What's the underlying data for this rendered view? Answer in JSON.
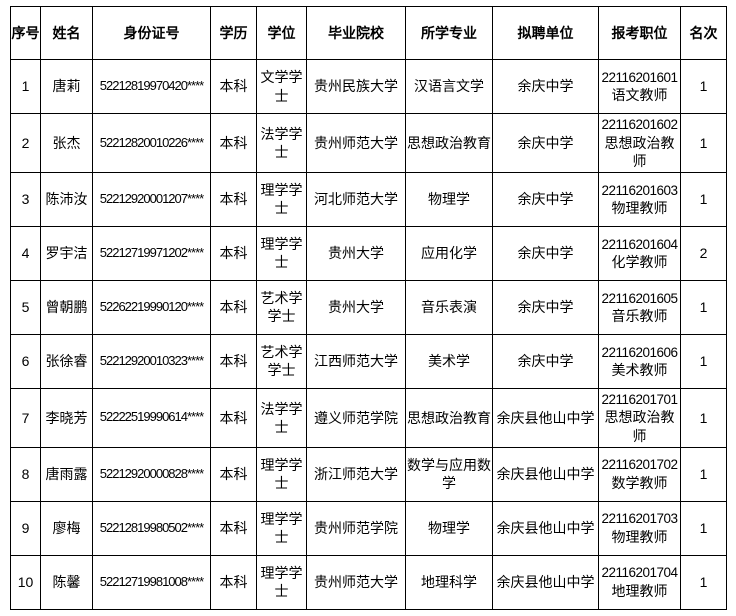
{
  "table": {
    "headers": [
      {
        "key": "index",
        "label": "序号"
      },
      {
        "key": "name",
        "label": "姓名"
      },
      {
        "key": "id_number",
        "label": "身份证号"
      },
      {
        "key": "education",
        "label": "学历"
      },
      {
        "key": "degree",
        "label": "学位"
      },
      {
        "key": "school",
        "label": "毕业院校"
      },
      {
        "key": "major",
        "label": "所学专业"
      },
      {
        "key": "employer",
        "label": "拟聘单位"
      },
      {
        "key": "position",
        "label": "报考职位"
      },
      {
        "key": "rank",
        "label": "名次"
      }
    ],
    "rows": [
      {
        "index": "1",
        "name": "唐莉",
        "id_number": "52212819970420****",
        "education": "本科",
        "degree": "文学学士",
        "school": "贵州民族大学",
        "major": "汉语言文学",
        "employer": "余庆中学",
        "position_code": "22116201601",
        "position_title": "语文教师",
        "rank": "1"
      },
      {
        "index": "2",
        "name": "张杰",
        "id_number": "52212820010226****",
        "education": "本科",
        "degree": "法学学士",
        "school": "贵州师范大学",
        "major": "思想政治教育",
        "employer": "余庆中学",
        "position_code": "22116201602",
        "position_title": "思想政治教师",
        "rank": "1"
      },
      {
        "index": "3",
        "name": "陈沛汝",
        "id_number": "52212920001207****",
        "education": "本科",
        "degree": "理学学士",
        "school": "河北师范大学",
        "major": "物理学",
        "employer": "余庆中学",
        "position_code": "22116201603",
        "position_title": "物理教师",
        "rank": "1"
      },
      {
        "index": "4",
        "name": "罗宇洁",
        "id_number": "52212719971202****",
        "education": "本科",
        "degree": "理学学士",
        "school": "贵州大学",
        "major": "应用化学",
        "employer": "余庆中学",
        "position_code": "22116201604",
        "position_title": "化学教师",
        "rank": "2"
      },
      {
        "index": "5",
        "name": "曾朝鹏",
        "id_number": "52262219990120****",
        "education": "本科",
        "degree": "艺术学学士",
        "school": "贵州大学",
        "major": "音乐表演",
        "employer": "余庆中学",
        "position_code": "22116201605",
        "position_title": "音乐教师",
        "rank": "1"
      },
      {
        "index": "6",
        "name": "张徐睿",
        "id_number": "52212920010323****",
        "education": "本科",
        "degree": "艺术学学士",
        "school": "江西师范大学",
        "major": "美术学",
        "employer": "余庆中学",
        "position_code": "22116201606",
        "position_title": "美术教师",
        "rank": "1"
      },
      {
        "index": "7",
        "name": "李晓芳",
        "id_number": "52222519990614****",
        "education": "本科",
        "degree": "法学学士",
        "school": "遵义师范学院",
        "major": "思想政治教育",
        "employer": "余庆县他山中学",
        "position_code": "22116201701",
        "position_title": "思想政治教师",
        "rank": "1"
      },
      {
        "index": "8",
        "name": "唐雨露",
        "id_number": "52212920000828****",
        "education": "本科",
        "degree": "理学学士",
        "school": "浙江师范大学",
        "major": "数学与应用数学",
        "employer": "余庆县他山中学",
        "position_code": "22116201702",
        "position_title": "数学教师",
        "rank": "1"
      },
      {
        "index": "9",
        "name": "廖梅",
        "id_number": "52212819980502****",
        "education": "本科",
        "degree": "理学学士",
        "school": "贵州师范学院",
        "major": "物理学",
        "employer": "余庆县他山中学",
        "position_code": "22116201703",
        "position_title": "物理教师",
        "rank": "1"
      },
      {
        "index": "10",
        "name": "陈馨",
        "id_number": "52212719981008****",
        "education": "本科",
        "degree": "理学学士",
        "school": "贵州师范大学",
        "major": "地理科学",
        "employer": "余庆县他山中学",
        "position_code": "22116201704",
        "position_title": "地理教师",
        "rank": "1"
      }
    ]
  }
}
